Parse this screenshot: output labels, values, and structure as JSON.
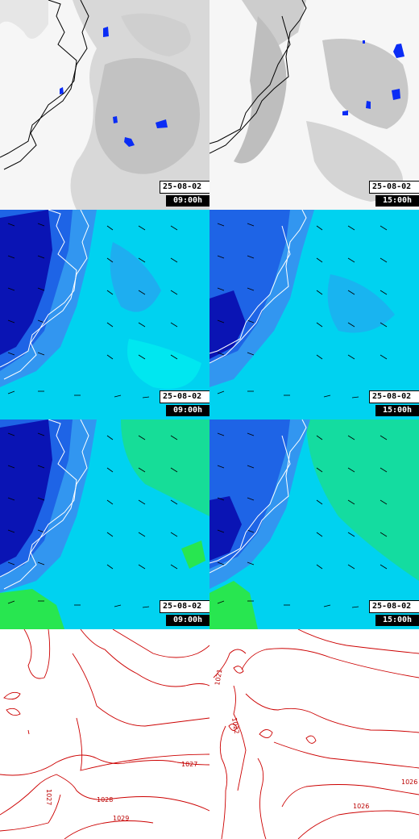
{
  "panels": [
    {
      "row": "clouds",
      "date": "25-08-02",
      "time": "09:00h"
    },
    {
      "row": "clouds",
      "date": "25-08-02",
      "time": "15:00h"
    },
    {
      "row": "wind_low",
      "date": "25-08-02",
      "time": "09:00h"
    },
    {
      "row": "wind_low",
      "date": "25-08-02",
      "time": "15:00h"
    },
    {
      "row": "wind_high",
      "date": "25-08-02",
      "time": "09:00h"
    },
    {
      "row": "wind_high",
      "date": "25-08-02",
      "time": "15:00h"
    },
    {
      "row": "pressure"
    },
    {
      "row": "pressure"
    }
  ],
  "isobar_labels": {
    "left": [
      "1027",
      "1028",
      "1029",
      "1027"
    ],
    "right": [
      "1021",
      "1022",
      "1026",
      "1026"
    ]
  },
  "colors": {
    "cloud_gray": "#bdbdbd",
    "precip_blue": "#0a2cf5",
    "deep_blue": "#0a14b4",
    "mid_blue": "#1e64e6",
    "light_blue": "#3296f0",
    "cyan": "#00d2f0",
    "bright_cyan": "#00f0f0",
    "green": "#28e650",
    "coast": "#ffffff",
    "isobar": "#cc0000"
  }
}
